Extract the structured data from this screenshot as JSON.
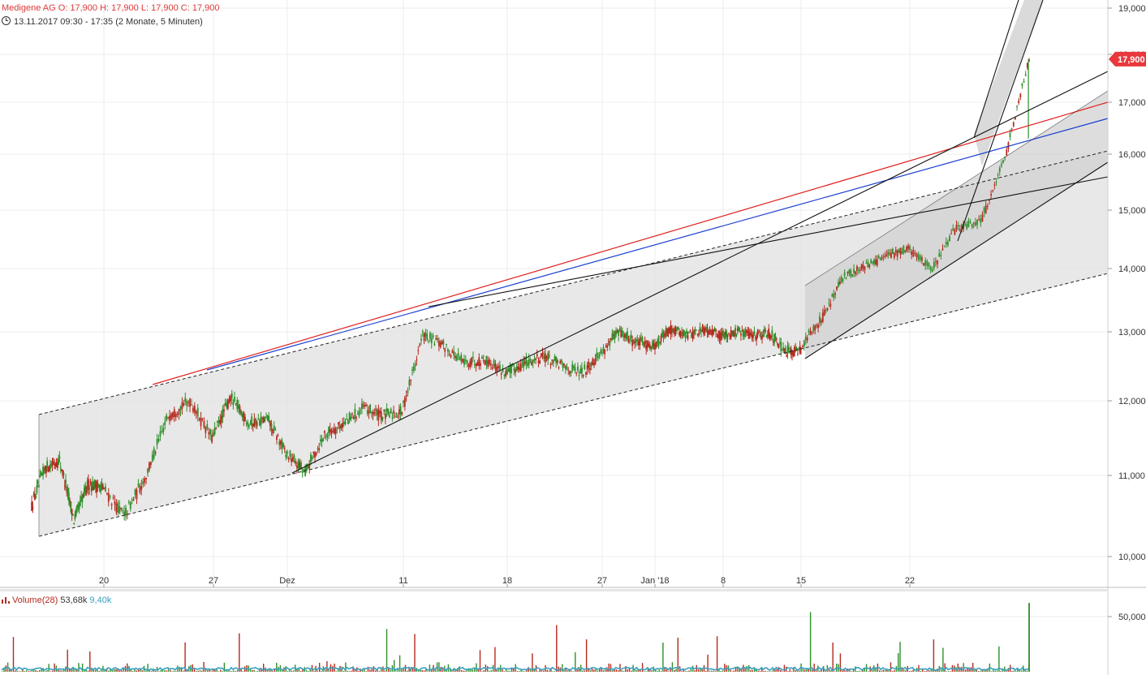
{
  "header": {
    "name": "Medigene AG",
    "ohlc": "O: 17,900  H: 17,900  L: 17,900  C: 17,900",
    "range": "13.11.2017 09:30 - 17:35",
    "period": "(2 Monate, 5 Minuten)"
  },
  "colors": {
    "up": "#2f8f2a",
    "down": "#b52a1e",
    "resistance_red": "#e02020",
    "resistance_blue": "#1a3fd0",
    "channel_fill": "#e4e4e4",
    "grid": "#ececec",
    "price_badge": "#e8383d",
    "volume_average": "#3aa0c0"
  },
  "chart_data": {
    "type": "candlestick",
    "price_axis": {
      "ylim": [
        9.6,
        19.3
      ],
      "ticks": [
        "10,000",
        "11,000",
        "12,000",
        "13,000",
        "14,000",
        "15,000",
        "16,000",
        "17,000",
        "18,000",
        "19,000"
      ]
    },
    "last_price_label": "17,900",
    "date_ticks": [
      "20",
      "27",
      "Dez",
      "11",
      "18",
      "27",
      "Jan '18",
      "8",
      "15",
      "22"
    ],
    "price_series": [
      [
        "2017-11-13",
        11.1
      ],
      [
        "2017-11-14",
        11.2
      ],
      [
        "2017-11-15",
        10.45
      ],
      [
        "2017-11-16",
        10.9
      ],
      [
        "2017-11-17",
        10.85
      ],
      [
        "2017-11-20",
        10.5
      ],
      [
        "2017-11-21",
        11.0
      ],
      [
        "2017-11-22",
        11.8
      ],
      [
        "2017-11-23",
        12.0
      ],
      [
        "2017-11-24",
        11.5
      ],
      [
        "2017-11-27",
        12.05
      ],
      [
        "2017-11-28",
        11.7
      ],
      [
        "2017-11-29",
        11.75
      ],
      [
        "2017-11-30",
        11.3
      ],
      [
        "2017-12-01",
        11.05
      ],
      [
        "2017-12-04",
        11.55
      ],
      [
        "2017-12-05",
        11.7
      ],
      [
        "2017-12-06",
        11.9
      ],
      [
        "2017-12-07",
        11.8
      ],
      [
        "2017-12-08",
        11.85
      ],
      [
        "2017-12-11",
        12.95
      ],
      [
        "2017-12-12",
        12.8
      ],
      [
        "2017-12-13",
        12.55
      ],
      [
        "2017-12-14",
        12.6
      ],
      [
        "2017-12-15",
        12.4
      ],
      [
        "2017-12-18",
        12.55
      ],
      [
        "2017-12-19",
        12.65
      ],
      [
        "2017-12-20",
        12.5
      ],
      [
        "2017-12-21",
        12.4
      ],
      [
        "2017-12-22",
        12.7
      ],
      [
        "2017-12-27",
        13.0
      ],
      [
        "2017-12-28",
        12.85
      ],
      [
        "2017-12-29",
        12.8
      ],
      [
        "2018-01-02",
        13.05
      ],
      [
        "2018-01-03",
        12.95
      ],
      [
        "2018-01-04",
        13.05
      ],
      [
        "2018-01-05",
        12.95
      ],
      [
        "2018-01-08",
        13.0
      ],
      [
        "2018-01-09",
        12.95
      ],
      [
        "2018-01-10",
        13.0
      ],
      [
        "2018-01-11",
        12.7
      ],
      [
        "2018-01-12",
        12.75
      ],
      [
        "2018-01-15",
        13.2
      ],
      [
        "2018-01-16",
        13.85
      ],
      [
        "2018-01-17",
        14.05
      ],
      [
        "2018-01-18",
        14.2
      ],
      [
        "2018-01-19",
        14.35
      ],
      [
        "2018-01-22",
        14.0
      ],
      [
        "2018-01-23",
        14.7
      ],
      [
        "2018-01-24",
        14.8
      ],
      [
        "2018-01-25",
        15.9
      ],
      [
        "2018-01-26",
        17.9
      ]
    ],
    "volume": {
      "label": "Volume(28)",
      "last": "53,68k",
      "average": "9,40k",
      "axis_tick": "50,000k",
      "ylim": [
        0,
        62
      ]
    }
  }
}
